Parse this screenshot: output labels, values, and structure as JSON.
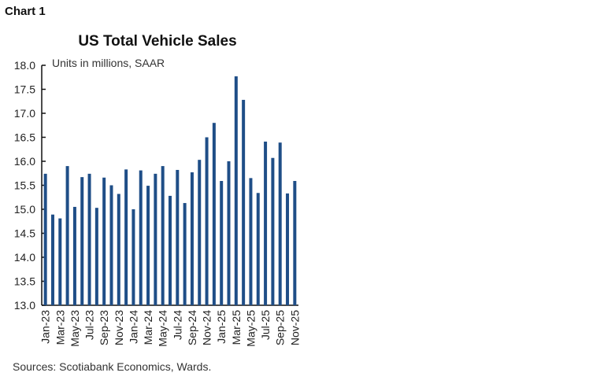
{
  "header": {
    "chart_label": "Chart 1"
  },
  "chart_data": {
    "type": "bar",
    "title": "US Total Vehicle Sales",
    "subtitle": "Units in millions, SAAR",
    "source": "Sources: Scotiabank Economics, Wards.",
    "ylim": [
      13.0,
      18.0
    ],
    "yticks": [
      "13.0",
      "13.5",
      "14.0",
      "14.5",
      "15.0",
      "15.5",
      "16.0",
      "16.5",
      "17.0",
      "17.5",
      "18.0"
    ],
    "grid": false,
    "bar_color": "#1f4e87",
    "categories": [
      "Jan-23",
      "Feb-23",
      "Mar-23",
      "Apr-23",
      "May-23",
      "Jun-23",
      "Jul-23",
      "Aug-23",
      "Sep-23",
      "Oct-23",
      "Nov-23",
      "Dec-23",
      "Jan-24",
      "Feb-24",
      "Mar-24",
      "Apr-24",
      "May-24",
      "Jun-24",
      "Jul-24",
      "Aug-24",
      "Sep-24",
      "Oct-24",
      "Nov-24",
      "Dec-24",
      "Jan-25",
      "Feb-25",
      "Mar-25",
      "Apr-25",
      "May-25",
      "Jun-25",
      "Jul-25",
      "Aug-25",
      "Sep-25",
      "Oct-25",
      "Nov-25"
    ],
    "tick_labels": [
      "Jan-23",
      "Mar-23",
      "May-23",
      "Jul-23",
      "Sep-23",
      "Nov-23",
      "Jan-24",
      "Mar-24",
      "May-24",
      "Jul-24",
      "Sep-24",
      "Nov-24",
      "Jan-25",
      "Mar-25",
      "May-25",
      "Jul-25",
      "Sep-25",
      "Nov-25"
    ],
    "values": [
      15.74,
      14.89,
      14.81,
      15.9,
      15.05,
      15.67,
      15.74,
      15.03,
      15.66,
      15.5,
      15.32,
      15.83,
      15.0,
      15.81,
      15.49,
      15.74,
      15.9,
      15.28,
      15.82,
      15.13,
      15.77,
      16.03,
      16.5,
      16.8,
      15.59,
      16.0,
      17.77,
      17.28,
      15.65,
      15.34,
      16.41,
      16.07,
      16.39,
      15.33,
      15.59
    ]
  }
}
